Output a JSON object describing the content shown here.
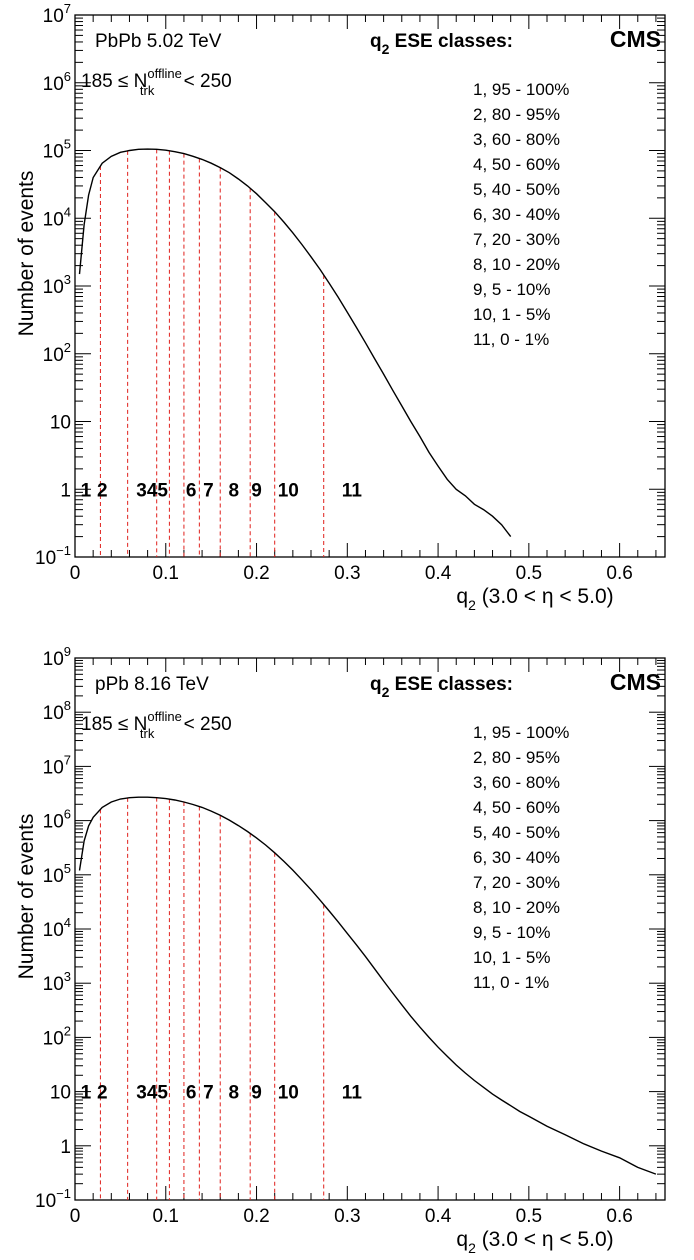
{
  "chart_data": [
    {
      "type": "line",
      "panel": "top",
      "system_label": "PbPb 5.02 TeV",
      "ntrk_label": {
        "prefix": "185 ≤ N",
        "sub": "trk",
        "sup": "offline",
        "suffix": " < 250"
      },
      "classes_title": {
        "q": "q",
        "sub": "2",
        "text": " ESE classes:"
      },
      "experiment": "CMS",
      "class_list": [
        "1, 95 - 100%",
        "2, 80 - 95%",
        "3, 60 - 80%",
        "4, 50 - 60%",
        "5, 40 - 50%",
        "6, 30 - 40%",
        "7, 20 - 30%",
        "8, 10 - 20%",
        "9,   5 - 10%",
        "10, 1 - 5%",
        "11, 0 - 1%"
      ],
      "bin_labels": [
        {
          "text": "1",
          "x": 0.012
        },
        {
          "text": "2",
          "x": 0.03
        },
        {
          "text": "345",
          "x": 0.085
        },
        {
          "text": "6",
          "x": 0.128
        },
        {
          "text": "7",
          "x": 0.147
        },
        {
          "text": "8",
          "x": 0.175
        },
        {
          "text": "9",
          "x": 0.2
        },
        {
          "text": "10",
          "x": 0.235
        },
        {
          "text": "11",
          "x": 0.305
        }
      ],
      "bin_label_y": 1,
      "boundaries": [
        0.028,
        0.058,
        0.09,
        0.104,
        0.12,
        0.137,
        0.16,
        0.193,
        0.22,
        0.274
      ],
      "xlabel": {
        "q": "q",
        "sub": "2",
        "text": " (3.0 < η < 5.0)"
      },
      "ylabel": "Number of events",
      "xlim": [
        0,
        0.65
      ],
      "ylim_log10": [
        -1,
        7
      ],
      "y_log": true,
      "x_ticks": [
        0,
        0.1,
        0.2,
        0.3,
        0.4,
        0.5,
        0.6
      ],
      "x_tick_labels": [
        "0",
        "0.1",
        "0.2",
        "0.3",
        "0.4",
        "0.5",
        "0.6"
      ],
      "y_tick_labels": [
        {
          "log": -1,
          "base": "10",
          "exp": "−1"
        },
        {
          "log": 0,
          "base": "1",
          "exp": ""
        },
        {
          "log": 1,
          "base": "10",
          "exp": ""
        },
        {
          "log": 2,
          "base": "10",
          "exp": "2"
        },
        {
          "log": 3,
          "base": "10",
          "exp": "3"
        },
        {
          "log": 4,
          "base": "10",
          "exp": "4"
        },
        {
          "log": 5,
          "base": "10",
          "exp": "5"
        },
        {
          "log": 6,
          "base": "10",
          "exp": "6"
        },
        {
          "log": 7,
          "base": "10",
          "exp": "7"
        }
      ],
      "series": [
        {
          "x": [
            0.005,
            0.01,
            0.015,
            0.02,
            0.03,
            0.04,
            0.05,
            0.06,
            0.07,
            0.08,
            0.09,
            0.1,
            0.11,
            0.12,
            0.13,
            0.14,
            0.15,
            0.16,
            0.17,
            0.18,
            0.19,
            0.2,
            0.21,
            0.22,
            0.23,
            0.24,
            0.25,
            0.26,
            0.27,
            0.28,
            0.29,
            0.3,
            0.31,
            0.32,
            0.33,
            0.34,
            0.35,
            0.36,
            0.37,
            0.38,
            0.39,
            0.4,
            0.41,
            0.42,
            0.43,
            0.44,
            0.45,
            0.46,
            0.47,
            0.48
          ],
          "y": [
            1500,
            8000,
            22000,
            40000,
            65000,
            82000,
            94000,
            100000,
            104000,
            105000,
            104000,
            101000,
            96000,
            90000,
            82000,
            74000,
            65000,
            56000,
            47000,
            38000,
            30000,
            23000,
            17000,
            12500,
            8800,
            6100,
            4100,
            2700,
            1750,
            1100,
            680,
            410,
            245,
            145,
            85,
            50,
            29,
            17,
            10,
            6,
            3.5,
            2.2,
            1.4,
            1,
            0.8,
            0.6,
            0.5,
            0.4,
            0.3,
            0.2
          ]
        }
      ]
    },
    {
      "type": "line",
      "panel": "bottom",
      "system_label": "pPb 8.16 TeV",
      "ntrk_label": {
        "prefix": "185 ≤ N",
        "sub": "trk",
        "sup": "offline",
        "suffix": " < 250"
      },
      "classes_title": {
        "q": "q",
        "sub": "2",
        "text": " ESE classes:"
      },
      "experiment": "CMS",
      "class_list": [
        "1, 95 - 100%",
        "2, 80 - 95%",
        "3, 60 - 80%",
        "4, 50 - 60%",
        "5, 40 - 50%",
        "6, 30 - 40%",
        "7, 20 - 30%",
        "8, 10 - 20%",
        "9,   5 - 10%",
        "10, 1 - 5%",
        "11, 0 - 1%"
      ],
      "bin_labels": [
        {
          "text": "1",
          "x": 0.012
        },
        {
          "text": "2",
          "x": 0.03
        },
        {
          "text": "345",
          "x": 0.085
        },
        {
          "text": "6",
          "x": 0.128
        },
        {
          "text": "7",
          "x": 0.147
        },
        {
          "text": "8",
          "x": 0.175
        },
        {
          "text": "9",
          "x": 0.2
        },
        {
          "text": "10",
          "x": 0.235
        },
        {
          "text": "11",
          "x": 0.305
        }
      ],
      "bin_label_y": 10,
      "boundaries": [
        0.028,
        0.058,
        0.09,
        0.104,
        0.12,
        0.137,
        0.16,
        0.193,
        0.22,
        0.274
      ],
      "xlabel": {
        "q": "q",
        "sub": "2",
        "text": " (3.0 < η < 5.0)"
      },
      "ylabel": "Number of events",
      "xlim": [
        0,
        0.65
      ],
      "ylim_log10": [
        -1,
        9
      ],
      "y_log": true,
      "x_ticks": [
        0,
        0.1,
        0.2,
        0.3,
        0.4,
        0.5,
        0.6
      ],
      "x_tick_labels": [
        "0",
        "0.1",
        "0.2",
        "0.3",
        "0.4",
        "0.5",
        "0.6"
      ],
      "y_tick_labels": [
        {
          "log": -1,
          "base": "10",
          "exp": "−1"
        },
        {
          "log": 0,
          "base": "1",
          "exp": ""
        },
        {
          "log": 1,
          "base": "10",
          "exp": ""
        },
        {
          "log": 2,
          "base": "10",
          "exp": "2"
        },
        {
          "log": 3,
          "base": "10",
          "exp": "3"
        },
        {
          "log": 4,
          "base": "10",
          "exp": "4"
        },
        {
          "log": 5,
          "base": "10",
          "exp": "5"
        },
        {
          "log": 6,
          "base": "10",
          "exp": "6"
        },
        {
          "log": 7,
          "base": "10",
          "exp": "7"
        },
        {
          "log": 8,
          "base": "10",
          "exp": "8"
        },
        {
          "log": 9,
          "base": "10",
          "exp": "9"
        }
      ],
      "series": [
        {
          "x": [
            0.005,
            0.01,
            0.015,
            0.02,
            0.03,
            0.04,
            0.05,
            0.06,
            0.07,
            0.08,
            0.09,
            0.1,
            0.11,
            0.12,
            0.13,
            0.14,
            0.15,
            0.16,
            0.17,
            0.18,
            0.19,
            0.2,
            0.21,
            0.22,
            0.23,
            0.24,
            0.25,
            0.26,
            0.27,
            0.28,
            0.29,
            0.3,
            0.31,
            0.32,
            0.33,
            0.34,
            0.35,
            0.36,
            0.37,
            0.38,
            0.39,
            0.4,
            0.41,
            0.42,
            0.43,
            0.44,
            0.45,
            0.46,
            0.47,
            0.48,
            0.49,
            0.5,
            0.52,
            0.54,
            0.56,
            0.58,
            0.6,
            0.62,
            0.64
          ],
          "y": [
            120000,
            420000,
            800000,
            1150000,
            1750000,
            2200000,
            2500000,
            2650000,
            2700000,
            2700000,
            2650000,
            2550000,
            2400000,
            2200000,
            1980000,
            1750000,
            1500000,
            1250000,
            1020000,
            810000,
            630000,
            480000,
            355000,
            255000,
            178000,
            122000,
            81000,
            53000,
            34000,
            21500,
            13500,
            8300,
            5100,
            3100,
            1850,
            1100,
            660,
            400,
            245,
            155,
            100,
            66,
            45,
            31,
            22,
            16,
            12,
            9,
            7,
            5.5,
            4.3,
            3.5,
            2.3,
            1.6,
            1.1,
            0.8,
            0.6,
            0.4,
            0.3
          ]
        }
      ]
    }
  ]
}
